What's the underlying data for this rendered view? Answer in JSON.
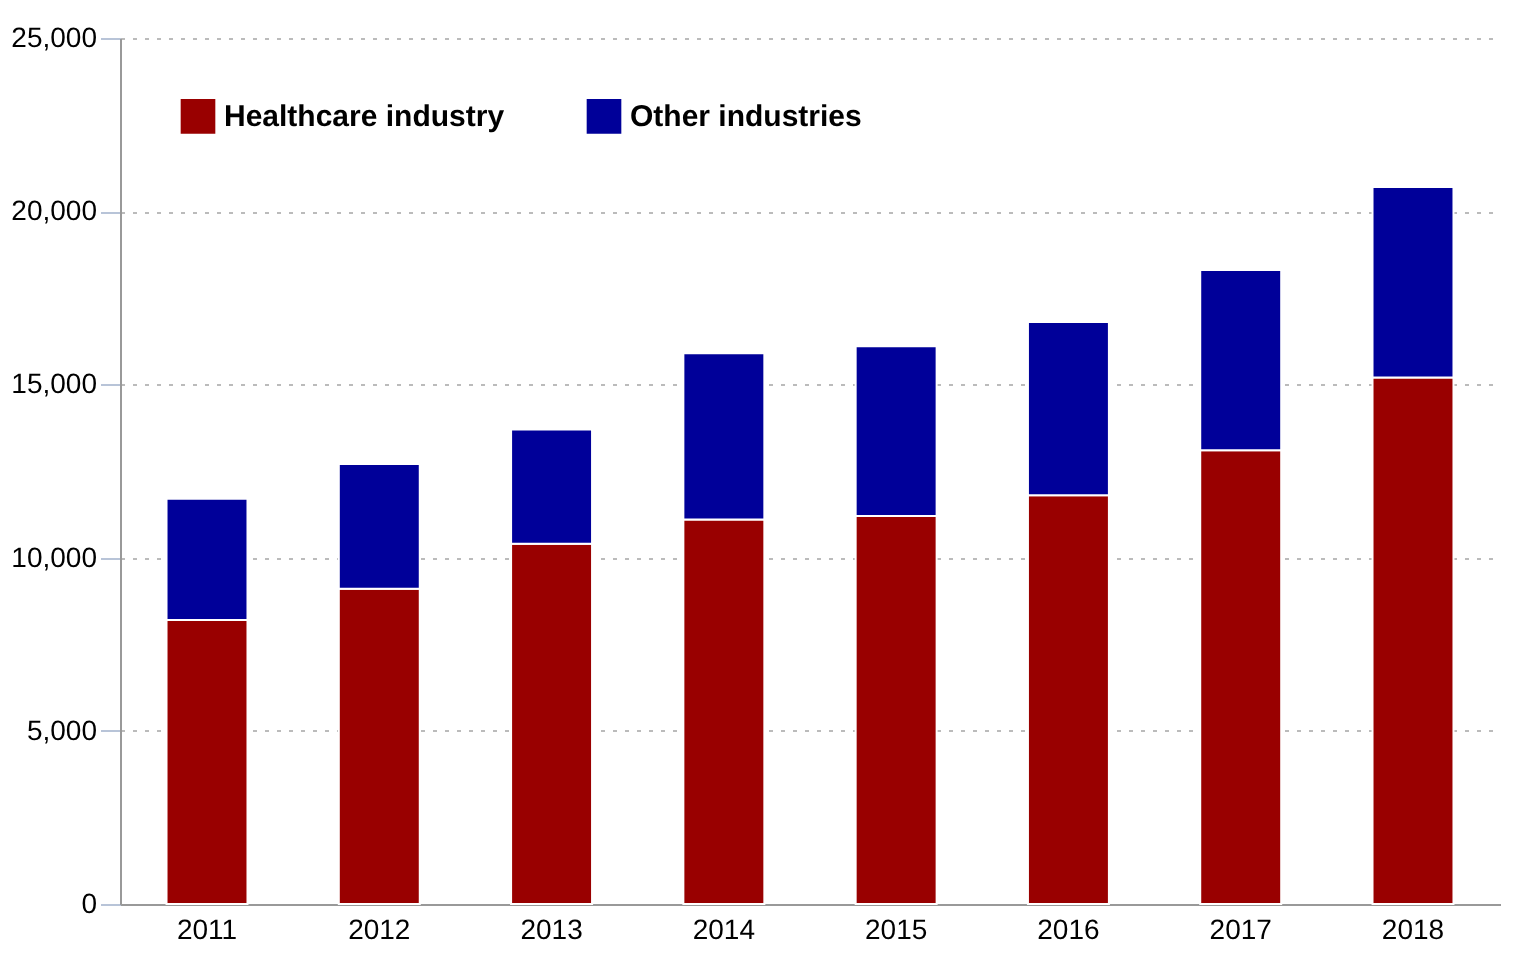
{
  "chart_data": {
    "type": "bar",
    "stacked": true,
    "categories": [
      "2011",
      "2012",
      "2013",
      "2014",
      "2015",
      "2016",
      "2017",
      "2018"
    ],
    "series": [
      {
        "name": "Healthcare industry",
        "color": "#990000",
        "values": [
          8200,
          9100,
          10400,
          11100,
          11200,
          11800,
          13100,
          15200
        ]
      },
      {
        "name": "Other industries",
        "color": "#000099",
        "values": [
          3500,
          3600,
          3300,
          4800,
          4900,
          5000,
          5200,
          5500
        ]
      }
    ],
    "ylim": [
      0,
      25000
    ],
    "yticks": [
      0,
      {
        "value": 5000,
        "label": "5,000"
      },
      {
        "value": 10000,
        "label": "10,000"
      },
      {
        "value": 15000,
        "label": "15,000"
      },
      {
        "value": 20000,
        "label": "20,000"
      },
      {
        "value": 25000,
        "label": "25,000"
      }
    ],
    "grid": "y",
    "legend": "top left"
  }
}
